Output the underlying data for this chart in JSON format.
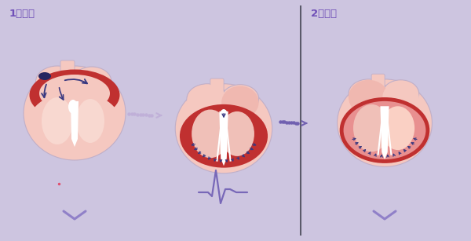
{
  "bg_color": "#cdc5e0",
  "heart_outline_color": "#c0afc8",
  "heart_skin_light": "#f5c8c0",
  "heart_skin_med": "#f0b8b0",
  "heart_pink_inner": "#f8d8d0",
  "heart_dark_red": "#c03030",
  "heart_mid_pink": "#e89090",
  "heart_ventricle_pink": "#e8a8a0",
  "heart_ventricle_light": "#f0c0b8",
  "white": "#ffffff",
  "divider_color": "#5a5a6a",
  "arrow_dashed_color": "#c0b0d8",
  "arrow_dark": "#383880",
  "arrow_purple": "#7060b0",
  "label1": "1脆分極",
  "label2": "2再分極",
  "label_color": "#7050b8",
  "ecg_color": "#7868b8",
  "caret_color": "#9080c8"
}
